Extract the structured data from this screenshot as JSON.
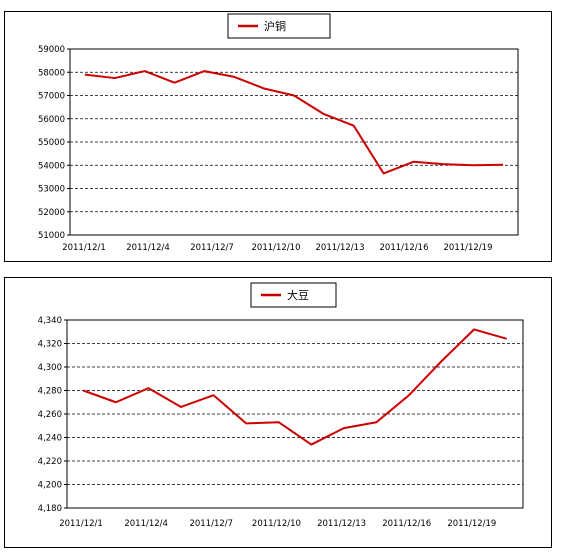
{
  "chart_data": [
    {
      "type": "line",
      "x": [
        "2011/12/1",
        "2011/12/2",
        "2011/12/5",
        "2011/12/6",
        "2011/12/7",
        "2011/12/8",
        "2011/12/9",
        "2011/12/12",
        "2011/12/13",
        "2011/12/14",
        "2011/12/15",
        "2011/12/16",
        "2011/12/19",
        "2011/12/20",
        "2011/12/21"
      ],
      "x_tick_labels": [
        "2011/12/1",
        "2011/12/4",
        "2011/12/7",
        "2011/12/10",
        "2011/12/13",
        "2011/12/16",
        "2011/12/19"
      ],
      "series": [
        {
          "name": "沪铜",
          "values": [
            57900,
            57750,
            58050,
            57550,
            58050,
            57800,
            57300,
            57000,
            56200,
            55700,
            53650,
            54150,
            54050,
            54000,
            54020
          ],
          "color": "#cc0000"
        }
      ],
      "ylim": [
        51000,
        59000
      ],
      "y_ticks": [
        "51000",
        "52000",
        "53000",
        "54000",
        "55000",
        "56000",
        "57000",
        "58000",
        "59000"
      ],
      "grid": true,
      "legend": "top-center"
    },
    {
      "type": "line",
      "x": [
        "2011/12/1",
        "2011/12/2",
        "2011/12/5",
        "2011/12/6",
        "2011/12/7",
        "2011/12/8",
        "2011/12/9",
        "2011/12/12",
        "2011/12/13",
        "2011/12/14",
        "2011/12/15",
        "2011/12/16",
        "2011/12/20",
        "2011/12/21"
      ],
      "x_tick_labels": [
        "2011/12/1",
        "2011/12/4",
        "2011/12/7",
        "2011/12/10",
        "2011/12/13",
        "2011/12/16",
        "2011/12/19"
      ],
      "series": [
        {
          "name": "大豆",
          "values": [
            4280,
            4270,
            4282,
            4266,
            4276,
            4252,
            4253,
            4234,
            4248,
            4253,
            4276,
            4305,
            4332,
            4324
          ],
          "color": "#cc0000"
        }
      ],
      "ylim": [
        4180,
        4340
      ],
      "y_ticks": [
        "4,180",
        "4,200",
        "4,220",
        "4,240",
        "4,260",
        "4,280",
        "4,300",
        "4,320",
        "4,340"
      ],
      "grid": true,
      "legend": "top-center"
    }
  ]
}
